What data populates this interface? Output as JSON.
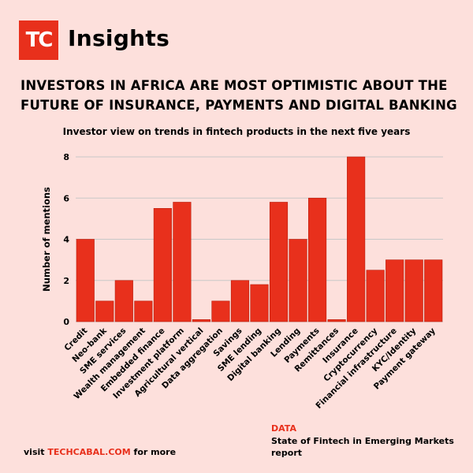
{
  "brand": {
    "logo_text": "TC",
    "name": "Insights"
  },
  "headline": "INVESTORS IN AFRICA ARE MOST OPTIMISTIC ABOUT THE FUTURE OF INSURANCE, PAYMENTS AND DIGITAL BANKING",
  "footer": {
    "prefix": "visit ",
    "link": "TECHCABAL.COM",
    "suffix": " for more",
    "data_label": "DATA",
    "data_source": "State of Fintech in Emerging Markets report"
  },
  "colors": {
    "bar": "#e8301c",
    "background": "#fde0dc",
    "grid": "#c8c8c8"
  },
  "chart_data": {
    "type": "bar",
    "title": "Investor view on trends in fintech products in the next five years",
    "xlabel": "",
    "ylabel": "Number of mentions",
    "ylim": [
      0,
      8
    ],
    "yticks": [
      0,
      2,
      4,
      6,
      8
    ],
    "grid": true,
    "categories": [
      "Credit",
      "Neo-bank",
      "SME services",
      "Wealth management",
      "Embedded finance",
      "Investment platform",
      "Agricultural vertical",
      "Data aggregation",
      "Savings",
      "SME lending",
      "Digital banking",
      "Lending",
      "Payments",
      "Remittances",
      "Insurance",
      "Cryptocurrency",
      "Financial infrastructure",
      "KYC/Identity",
      "Payment gateway"
    ],
    "values": [
      4,
      1,
      2,
      1,
      5.5,
      5.8,
      0.1,
      1,
      2,
      1.8,
      5.8,
      4,
      6,
      0.1,
      8,
      2.5,
      3,
      3,
      3
    ]
  }
}
